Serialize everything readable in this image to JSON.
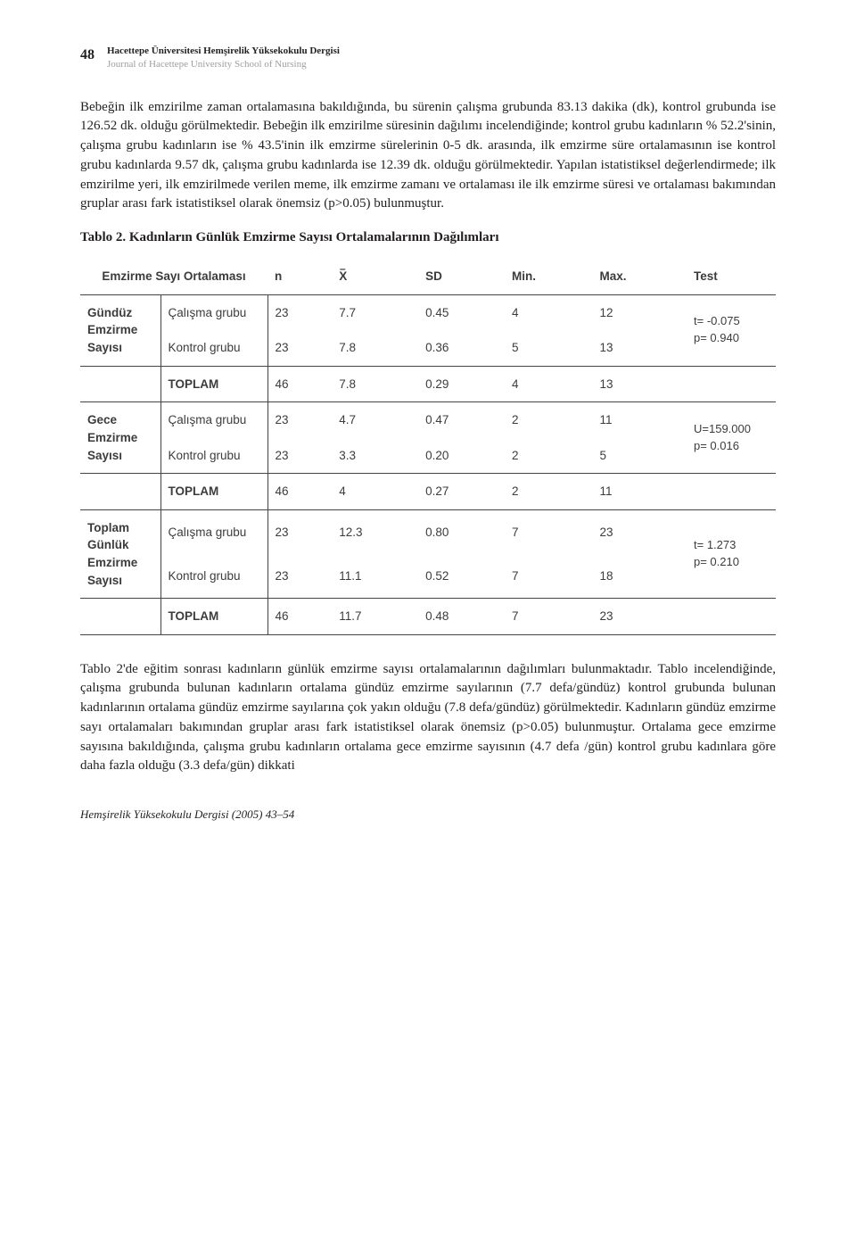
{
  "page_number": "48",
  "journal_title_tr": "Hacettepe Üniversitesi Hemşirelik Yüksekokulu Dergisi",
  "journal_title_en": "Journal of Hacettepe University School of Nursing",
  "paragraph_1": "Bebeğin ilk emzirilme zaman ortalamasına bakıldığında, bu sürenin çalışma grubunda 83.13 dakika (dk), kontrol grubunda ise 126.52 dk. olduğu görülmektedir. Bebeğin ilk emzirilme süresinin dağılımı incelendiğinde; kontrol grubu kadınların % 52.2'sinin, çalışma grubu kadınların ise % 43.5'inin ilk emzirme sürelerinin 0-5 dk. arasında, ilk emzirme süre ortalamasının ise kontrol grubu kadınlarda 9.57 dk, çalışma grubu kadınlarda ise 12.39 dk. olduğu görülmektedir. Yapılan istatistiksel değerlendirmede; ilk emzirilme yeri, ilk emzirilmede verilen meme, ilk emzirme zamanı ve ortalaması ile ilk emzirme süresi ve ortalaması bakımından gruplar arası fark istatistiksel olarak önemsiz (p>0.05) bulunmuştur.",
  "table_title": "Tablo 2. Kadınların Günlük Emzirme Sayısı Ortalamalarının Dağılımları",
  "table": {
    "header": {
      "c1": "Emzirme Sayı Ortalaması",
      "c2": "n",
      "c3": "X",
      "c4": "SD",
      "c5": "Min.",
      "c6": "Max.",
      "c7": "Test"
    },
    "sections": [
      {
        "label": "Gündüz Emzirme Sayısı",
        "rows": [
          {
            "group": "Çalışma grubu",
            "n": "23",
            "x": "7.7",
            "sd": "0.45",
            "min": "4",
            "max": "12"
          },
          {
            "group": "Kontrol grubu",
            "n": "23",
            "x": "7.8",
            "sd": "0.36",
            "min": "5",
            "max": "13"
          },
          {
            "group": "TOPLAM",
            "n": "46",
            "x": "7.8",
            "sd": "0.29",
            "min": "4",
            "max": "13"
          }
        ],
        "test": {
          "line1": "t= -0.075",
          "line2": "p= 0.940"
        }
      },
      {
        "label": "Gece Emzirme Sayısı",
        "rows": [
          {
            "group": "Çalışma grubu",
            "n": "23",
            "x": "4.7",
            "sd": "0.47",
            "min": "2",
            "max": "11"
          },
          {
            "group": "Kontrol grubu",
            "n": "23",
            "x": "3.3",
            "sd": "0.20",
            "min": "2",
            "max": "5"
          },
          {
            "group": "TOPLAM",
            "n": "46",
            "x": "4",
            "sd": "0.27",
            "min": "2",
            "max": "11"
          }
        ],
        "test": {
          "line1": "U=159.000",
          "line2": "p= 0.016"
        }
      },
      {
        "label": "Toplam Günlük Emzirme Sayısı",
        "rows": [
          {
            "group": "Çalışma grubu",
            "n": "23",
            "x": "12.3",
            "sd": "0.80",
            "min": "7",
            "max": "23"
          },
          {
            "group": "Kontrol grubu",
            "n": "23",
            "x": "11.1",
            "sd": "0.52",
            "min": "7",
            "max": "18"
          },
          {
            "group": "TOPLAM",
            "n": "46",
            "x": "11.7",
            "sd": "0.48",
            "min": "7",
            "max": "23"
          }
        ],
        "test": {
          "line1": "t= 1.273",
          "line2": "p= 0.210"
        }
      }
    ]
  },
  "paragraph_2": "Tablo 2'de eğitim sonrası kadınların günlük emzirme sayısı ortalamalarının dağılımları bulunmaktadır. Tablo incelendiğinde, çalışma grubunda bulunan kadınların ortalama gündüz emzirme sayılarının (7.7 defa/gündüz) kontrol grubunda bulunan kadınlarının ortalama gündüz emzirme sayılarına çok yakın olduğu (7.8 defa/gündüz) görülmektedir. Kadınların gündüz emzirme sayı ortalamaları bakımından gruplar arası fark istatistiksel olarak önemsiz (p>0.05) bulunmuştur. Ortalama gece emzirme sayısına bakıldığında, çalışma grubu kadınların ortalama gece emzirme sayısının (4.7 defa /gün) kontrol grubu kadınlara göre daha fazla olduğu (3.3 defa/gün) dikkati",
  "footer": "Hemşirelik Yüksekokulu Dergisi (2005) 43–54"
}
